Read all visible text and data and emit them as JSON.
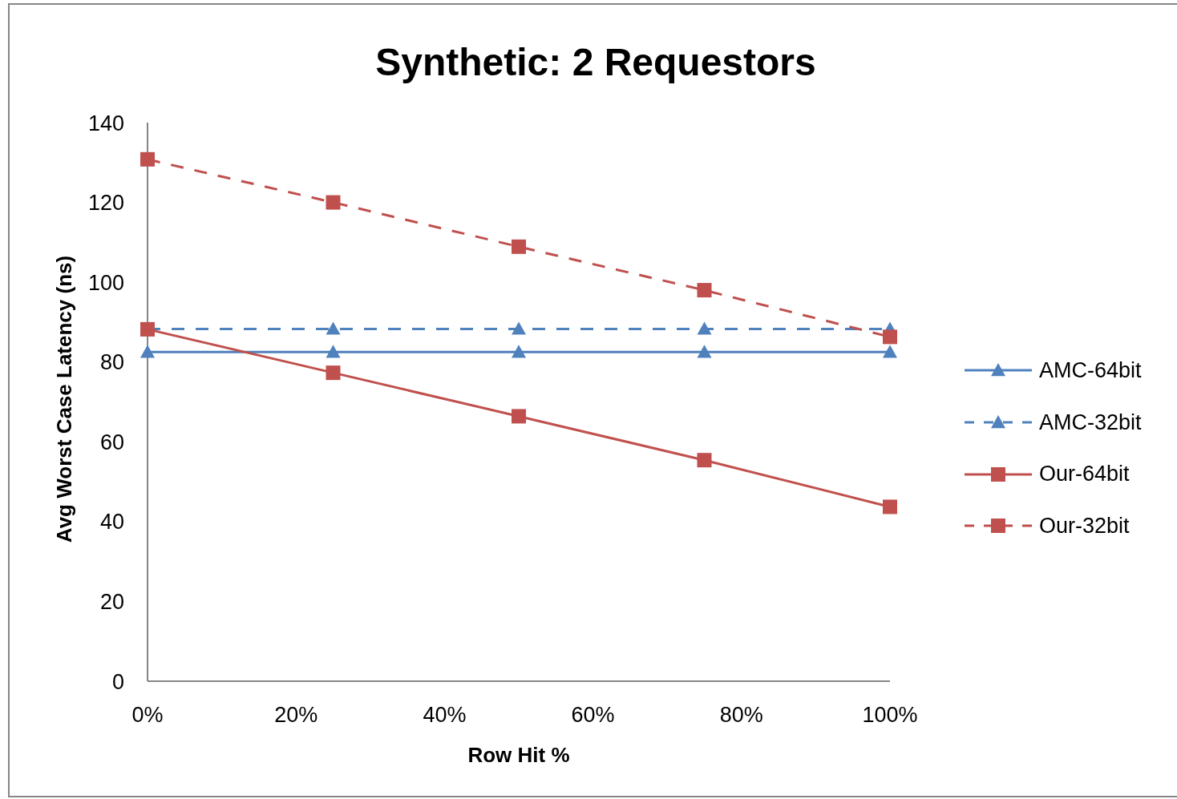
{
  "chart_data": {
    "type": "line",
    "title": "Synthetic: 2 Requestors",
    "xlabel": "Row Hit %",
    "ylabel": "Avg Worst Case Latency (ns)",
    "x": [
      0,
      25,
      50,
      75,
      100
    ],
    "xlim": [
      0,
      100
    ],
    "xticks": [
      {
        "value": 0,
        "label": "0%"
      },
      {
        "value": 20,
        "label": "20%"
      },
      {
        "value": 40,
        "label": "40%"
      },
      {
        "value": 60,
        "label": "60%"
      },
      {
        "value": 80,
        "label": "80%"
      },
      {
        "value": 100,
        "label": "100%"
      }
    ],
    "ylim": [
      0,
      140
    ],
    "yticks": [
      0,
      20,
      40,
      60,
      80,
      100,
      120,
      140
    ],
    "legend": "right",
    "series": [
      {
        "name": "AMC-64bit",
        "color": "#4f81bd",
        "values": [
          82.5,
          82.5,
          82.5,
          82.5,
          82.5
        ],
        "marker": "triangle",
        "line_style": "solid"
      },
      {
        "name": "AMC-32bit",
        "color": "#4f81bd",
        "values": [
          88.3,
          88.3,
          88.3,
          88.3,
          88.3
        ],
        "marker": "triangle",
        "line_style": "dashed"
      },
      {
        "name": "Our-64bit",
        "color": "#c0504d",
        "values": [
          88.2,
          77.3,
          66.4,
          55.4,
          43.7
        ],
        "marker": "square",
        "line_style": "solid"
      },
      {
        "name": "Our-32bit",
        "color": "#c0504d",
        "values": [
          130.8,
          120,
          108.9,
          98,
          86.3
        ],
        "marker": "square",
        "line_style": "dashed"
      }
    ]
  }
}
